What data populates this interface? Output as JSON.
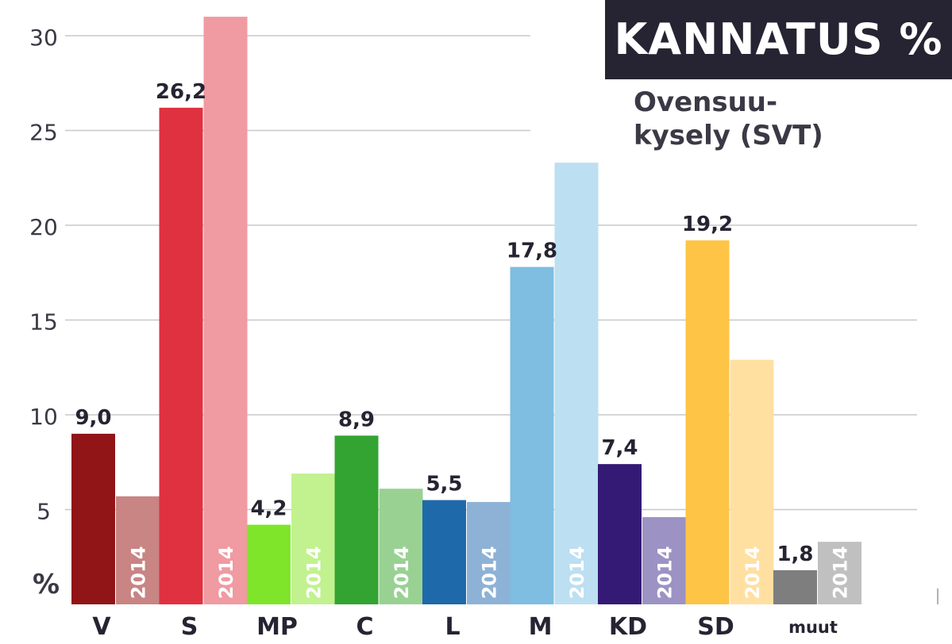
{
  "chart_data": {
    "type": "bar",
    "title": "KANNATUS %",
    "subtitle_lines": [
      "Ovensuu-",
      "kysely (SVT)"
    ],
    "ylabel": "%",
    "ylim": [
      0,
      32
    ],
    "yticks": [
      5,
      10,
      15,
      20,
      25,
      30
    ],
    "grid": true,
    "categories": [
      "V",
      "S",
      "MP",
      "C",
      "L",
      "M",
      "KD",
      "SD",
      "muut"
    ],
    "series": [
      {
        "values": [
          9.0,
          26.2,
          4.2,
          8.9,
          5.5,
          17.8,
          7.4,
          19.2,
          1.8
        ],
        "value_labels": [
          "9,0",
          "26,2",
          "4,2",
          "8,9",
          "5,5",
          "17,8",
          "7,4",
          "19,2",
          "1,8"
        ],
        "colors": [
          "#911417",
          "#e03140",
          "#7fe52a",
          "#33a332",
          "#1e69a9",
          "#7fbde1",
          "#351a75",
          "#fec445",
          "#7e7e7e"
        ]
      },
      {
        "name": "2014",
        "values": [
          5.7,
          31.0,
          6.9,
          6.1,
          5.4,
          23.3,
          4.6,
          12.9,
          3.3
        ],
        "colors": [
          "#c98484",
          "#f09aa1",
          "#c1f28f",
          "#99d193",
          "#8db2d6",
          "#bcdff1",
          "#9c93c4",
          "#ffe0a1",
          "#c0c0c0"
        ]
      }
    ]
  }
}
